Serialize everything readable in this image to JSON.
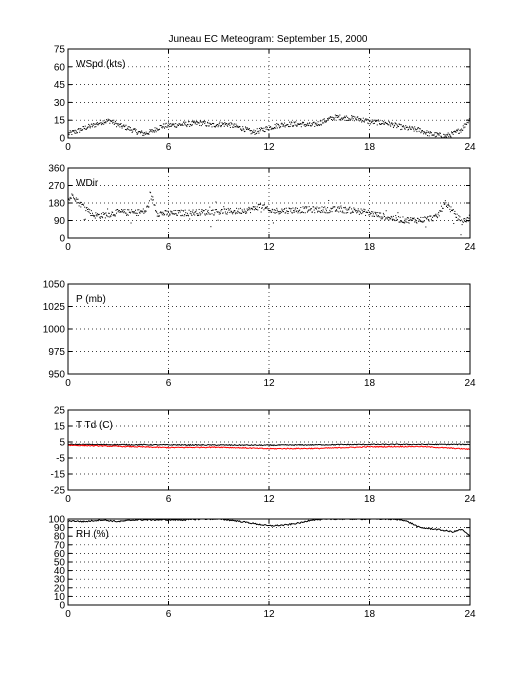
{
  "title": "Juneau EC Meteogram: September 15, 2000",
  "chart_data": [
    {
      "type": "scatter",
      "label": "WSpd (kts)",
      "ylim": [
        0,
        75
      ],
      "yticks": [
        0,
        15,
        30,
        45,
        60,
        75
      ],
      "xlim": [
        0,
        24
      ],
      "xticks": [
        0,
        6,
        12,
        18,
        24
      ],
      "grid": true,
      "color": "#000000",
      "profile": [
        [
          0,
          4
        ],
        [
          0.5,
          6
        ],
        [
          1,
          9
        ],
        [
          1.5,
          11
        ],
        [
          2,
          14
        ],
        [
          2.5,
          15
        ],
        [
          3,
          11
        ],
        [
          3.5,
          9
        ],
        [
          4,
          6
        ],
        [
          4.5,
          4
        ],
        [
          5,
          6
        ],
        [
          5.5,
          10
        ],
        [
          6,
          11
        ],
        [
          7,
          12
        ],
        [
          8,
          13
        ],
        [
          8.5,
          11
        ],
        [
          9,
          12
        ],
        [
          9.5,
          12
        ],
        [
          10,
          10
        ],
        [
          10.5,
          8
        ],
        [
          11,
          5
        ],
        [
          11.5,
          7
        ],
        [
          12,
          9
        ],
        [
          12.5,
          11
        ],
        [
          13,
          12
        ],
        [
          14,
          12
        ],
        [
          14.5,
          11
        ],
        [
          15,
          13
        ],
        [
          15.5,
          16
        ],
        [
          16,
          18
        ],
        [
          17,
          17
        ],
        [
          17.5,
          16
        ],
        [
          18,
          14
        ],
        [
          19,
          13
        ],
        [
          19.5,
          11
        ],
        [
          20,
          9
        ],
        [
          20.5,
          8
        ],
        [
          21,
          7
        ],
        [
          21.5,
          4
        ],
        [
          22,
          3
        ],
        [
          22.5,
          2
        ],
        [
          23,
          4
        ],
        [
          23.5,
          8
        ],
        [
          24,
          18
        ]
      ]
    },
    {
      "type": "scatter",
      "label": "WDir",
      "ylim": [
        0,
        360
      ],
      "yticks": [
        0,
        90,
        180,
        270,
        360
      ],
      "xlim": [
        0,
        24
      ],
      "xticks": [
        0,
        6,
        12,
        18,
        24
      ],
      "grid": true,
      "color": "#000000",
      "profile": [
        [
          0,
          200
        ],
        [
          0.3,
          225
        ],
        [
          0.6,
          185
        ],
        [
          1,
          160
        ],
        [
          1.5,
          120
        ],
        [
          2,
          118
        ],
        [
          3,
          135
        ],
        [
          4,
          132
        ],
        [
          4.6,
          140
        ],
        [
          5,
          210
        ],
        [
          5.3,
          130
        ],
        [
          6,
          128
        ],
        [
          8,
          135
        ],
        [
          10,
          140
        ],
        [
          11,
          150
        ],
        [
          11.5,
          170
        ],
        [
          12,
          140
        ],
        [
          14,
          148
        ],
        [
          16,
          148
        ],
        [
          17,
          145
        ],
        [
          18,
          130
        ],
        [
          19,
          110
        ],
        [
          20,
          95
        ],
        [
          21,
          95
        ],
        [
          22,
          110
        ],
        [
          22.5,
          185
        ],
        [
          23,
          130
        ],
        [
          23.5,
          85
        ],
        [
          24,
          110
        ]
      ]
    },
    {
      "type": "scatter",
      "label": "P (mb)",
      "ylim": [
        950,
        1050
      ],
      "yticks": [
        950,
        975,
        1000,
        1025,
        1050
      ],
      "xlim": [
        0,
        24
      ],
      "xticks": [
        0,
        6,
        12,
        18,
        24
      ],
      "grid": true,
      "color": "#000000",
      "profile": []
    },
    {
      "type": "line",
      "label": "T Td (C)",
      "ylim": [
        -25,
        25
      ],
      "yticks": [
        -25,
        -15,
        -5,
        5,
        15,
        25
      ],
      "xlim": [
        0,
        24
      ],
      "xticks": [
        0,
        6,
        12,
        18,
        24
      ],
      "grid": true,
      "series": [
        {
          "color": "#000000",
          "profile": [
            [
              0,
              3.5
            ],
            [
              6,
              3.2
            ],
            [
              12,
              3.0
            ],
            [
              18,
              3.5
            ],
            [
              24,
              3.5
            ]
          ]
        },
        {
          "color": "#ff0000",
          "profile": [
            [
              0,
              3.0
            ],
            [
              3,
              2.3
            ],
            [
              6,
              1.5
            ],
            [
              9,
              1.8
            ],
            [
              12,
              0.8
            ],
            [
              15,
              1.0
            ],
            [
              18,
              2.0
            ],
            [
              21,
              2.2
            ],
            [
              24,
              0.5
            ]
          ]
        }
      ]
    },
    {
      "type": "line",
      "label": "RH (%)",
      "ylim": [
        0,
        100
      ],
      "yticks": [
        0,
        10,
        20,
        30,
        40,
        50,
        60,
        70,
        80,
        90,
        100
      ],
      "xlim": [
        0,
        24
      ],
      "xticks": [
        0,
        6,
        12,
        18,
        24
      ],
      "grid": true,
      "color": "#000000",
      "profile": [
        [
          0,
          98
        ],
        [
          1,
          97
        ],
        [
          2,
          99
        ],
        [
          3,
          97
        ],
        [
          4,
          99
        ],
        [
          5,
          99
        ],
        [
          6,
          99
        ],
        [
          7,
          99
        ],
        [
          8,
          100
        ],
        [
          9,
          100
        ],
        [
          10,
          98
        ],
        [
          11,
          95
        ],
        [
          12,
          92
        ],
        [
          13,
          93
        ],
        [
          14,
          96
        ],
        [
          14.5,
          99
        ],
        [
          16,
          100
        ],
        [
          18,
          100
        ],
        [
          19,
          100
        ],
        [
          20,
          99
        ],
        [
          20.5,
          95
        ],
        [
          21,
          90
        ],
        [
          22,
          88
        ],
        [
          23,
          85
        ],
        [
          23.5,
          88
        ],
        [
          24,
          80
        ]
      ]
    }
  ]
}
